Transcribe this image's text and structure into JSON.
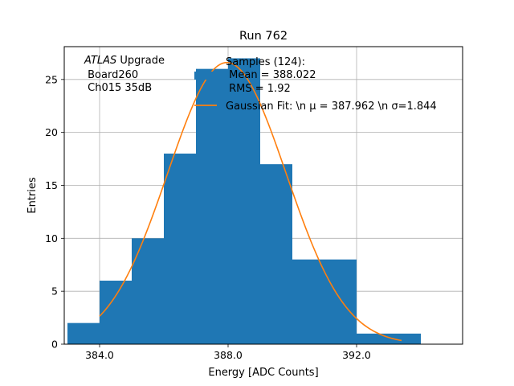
{
  "chart_data": {
    "type": "bar",
    "title": "Run 762",
    "xlabel": "Energy [ADC Counts]",
    "ylabel": "Entries",
    "xlim": [
      382.9,
      395.3
    ],
    "ylim": [
      0,
      28.1
    ],
    "x_ticks": [
      384,
      388,
      392
    ],
    "x_tick_labels": [
      "384.0",
      "388.0",
      "392.0"
    ],
    "y_ticks": [
      0,
      5,
      10,
      15,
      20,
      25
    ],
    "y_tick_labels": [
      "0",
      "5",
      "10",
      "15",
      "20",
      "25"
    ],
    "grid": true,
    "bin_edges": [
      383,
      384,
      385,
      386,
      387,
      388,
      389,
      390,
      391,
      392,
      393,
      394
    ],
    "counts": [
      2,
      6,
      10,
      18,
      26,
      27,
      17,
      8,
      8,
      1,
      1
    ],
    "fit": {
      "mu": 387.962,
      "sigma": 1.844,
      "amplitude": 26.6,
      "x_start": 384.0,
      "x_end": 393.4,
      "color": "#ff7f0e"
    },
    "bar_color": "#1f77b4",
    "annotation": {
      "line1_italic": "ATLAS",
      "line1_rest": " Upgrade",
      "line2": " Board260",
      "line3": " Ch015 35dB"
    },
    "legend": {
      "position": "top-right",
      "samples_lines": [
        "Samples (124):",
        " Mean = 388.022",
        " RMS = 1.92"
      ],
      "fit_label": "Gaussian Fit: \\n μ = 387.962 \\n σ=1.844"
    }
  }
}
